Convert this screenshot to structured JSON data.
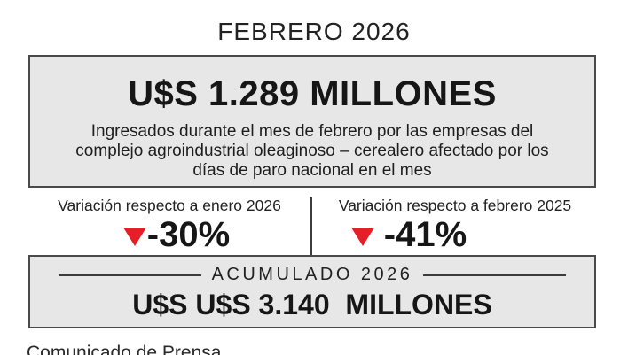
{
  "page": {
    "title": "FEBRERO 2026"
  },
  "monthly_box": {
    "amount": "U$S 1.289 MILLONES",
    "description_lines": [
      "Ingresados durante el mes de febrero por las empresas del",
      "complejo agroindustrial oleaginoso – cerealero afectado por los",
      "días de paro nacional en el mes"
    ]
  },
  "variations": [
    {
      "label": "Variación respecto a enero 2026",
      "value": "-30%",
      "direction": "down"
    },
    {
      "label": "Variación respecto a febrero 2025",
      "value": "-41%",
      "direction": "down"
    }
  ],
  "accumulated_box": {
    "header": "ACUMULADO 2026",
    "amount": "U$S U$S 3.140  MILLONES"
  },
  "footer": {
    "partial_text": "Comunicado de Prensa"
  },
  "colors": {
    "box_background": "#e7e7e7",
    "box_border": "#4a4a4a",
    "text": "#1e1e1e",
    "negative_red": "#e61e28"
  }
}
